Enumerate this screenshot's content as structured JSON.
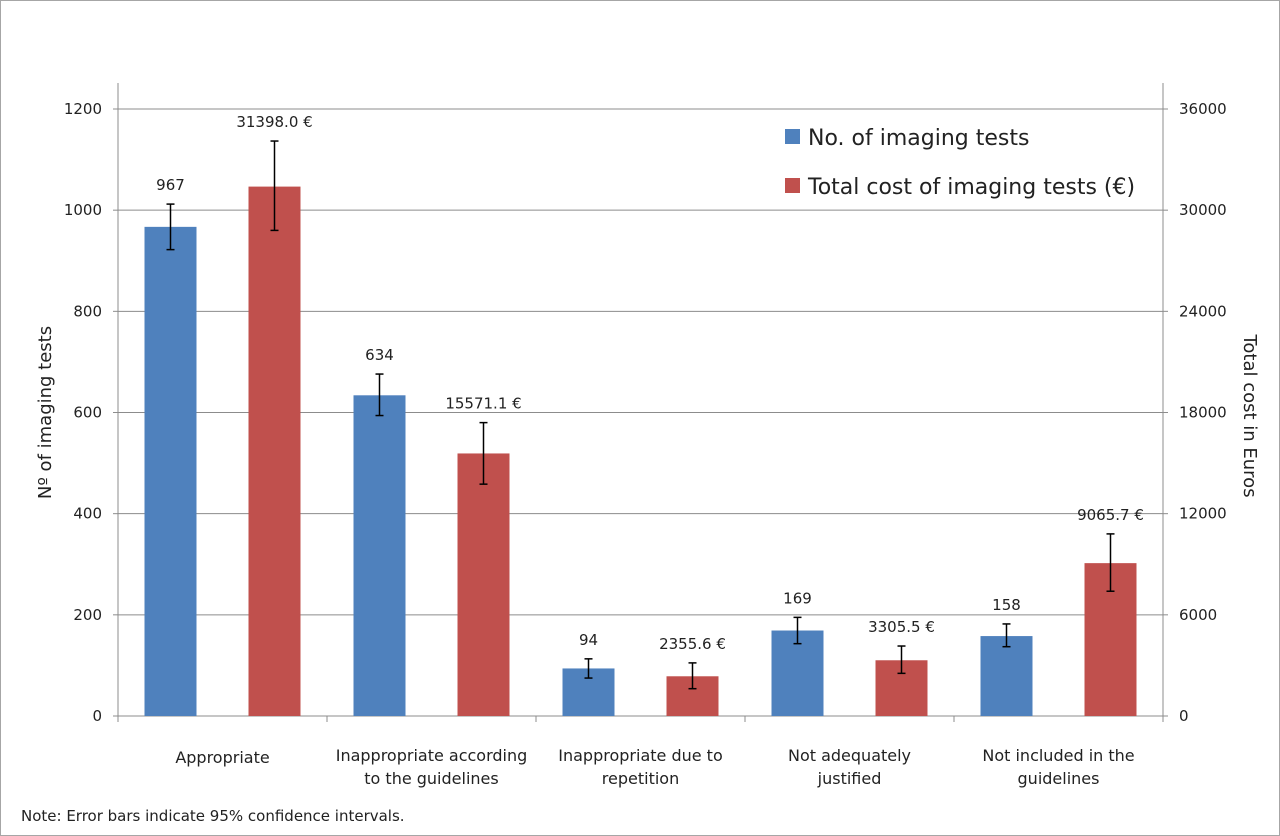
{
  "chart_data": {
    "type": "bar",
    "categories": [
      [
        "Appropriate"
      ],
      [
        "Inappropriate according",
        "to the guidelines"
      ],
      [
        "Inappropriate due to",
        "repetition"
      ],
      [
        "Not adequately",
        "justified"
      ],
      [
        "Not included in the",
        "guidelines"
      ]
    ],
    "series": [
      {
        "name": "No. of imaging tests",
        "axis": "left",
        "color": "#4f81bd",
        "values": [
          967,
          634,
          94,
          169,
          158
        ],
        "labels": [
          "967",
          "634",
          "94",
          "169",
          "158"
        ],
        "ci": [
          [
            922,
            1012
          ],
          [
            594,
            676
          ],
          [
            75,
            113
          ],
          [
            143,
            195
          ],
          [
            137,
            182
          ]
        ]
      },
      {
        "name": "Total cost of imaging tests (€)",
        "axis": "right",
        "color": "#c0504d",
        "values": [
          31398.0,
          15571.1,
          2355.6,
          3305.5,
          9065.7
        ],
        "labels": [
          "31398.0 €",
          "15571.1 €",
          "2355.6 €",
          "3305.5 €",
          "9065.7 €"
        ],
        "ci": [
          [
            28800,
            34100
          ],
          [
            13750,
            17400
          ],
          [
            1620,
            3150
          ],
          [
            2530,
            4150
          ],
          [
            7400,
            10800
          ]
        ]
      }
    ],
    "ylabel": "Nº of imaging tests",
    "y2label": "Total cost in Euros",
    "ylim": [
      0,
      1200
    ],
    "y2lim": [
      0,
      36000
    ],
    "yticks": [
      0,
      200,
      400,
      600,
      800,
      1000,
      1200
    ],
    "y2ticks": [
      0,
      6000,
      12000,
      18000,
      24000,
      30000,
      36000
    ],
    "grid": true,
    "legend_position": "top-right"
  },
  "note": "Note: Error bars indicate 95% confidence intervals."
}
